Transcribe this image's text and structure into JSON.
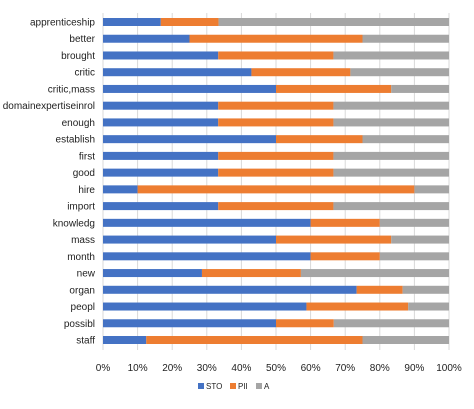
{
  "chart_data": {
    "type": "bar",
    "orientation": "horizontal",
    "stacked": "percent",
    "categories": [
      "apprenticeship",
      "better",
      "brought",
      "critic",
      "critic,mass",
      "domainexpertiseinrol",
      "enough",
      "establish",
      "first",
      "good",
      "hire",
      "import",
      "knowledg",
      "mass",
      "month",
      "new",
      "organ",
      "peopl",
      "possibl",
      "staff"
    ],
    "series": [
      {
        "name": "STO",
        "color": "#4472C4",
        "values": [
          16.7,
          25,
          33.3,
          42.9,
          50,
          33.3,
          33.3,
          50,
          33.3,
          33.3,
          10,
          33.3,
          60,
          50,
          60,
          28.6,
          73.3,
          58.8,
          50,
          12.5
        ]
      },
      {
        "name": "PII",
        "color": "#ED7D31",
        "values": [
          16.7,
          50,
          33.3,
          28.6,
          33.3,
          33.3,
          33.3,
          25,
          33.3,
          33.3,
          80,
          33.3,
          20,
          33.3,
          20,
          28.6,
          13.3,
          29.4,
          16.7,
          62.5
        ]
      },
      {
        "name": "A",
        "color": "#A5A5A5",
        "values": [
          66.6,
          25,
          33.4,
          28.5,
          16.7,
          33.4,
          33.4,
          25,
          33.4,
          33.4,
          10,
          33.4,
          20,
          16.7,
          20,
          42.8,
          13.4,
          11.8,
          33.3,
          25
        ]
      }
    ],
    "xaxis": {
      "ticks": [
        "0%",
        "10%",
        "20%",
        "30%",
        "40%",
        "50%",
        "60%",
        "70%",
        "80%",
        "90%",
        "100%"
      ],
      "range": [
        0,
        100
      ]
    },
    "grid": true,
    "legend_position": "bottom"
  }
}
